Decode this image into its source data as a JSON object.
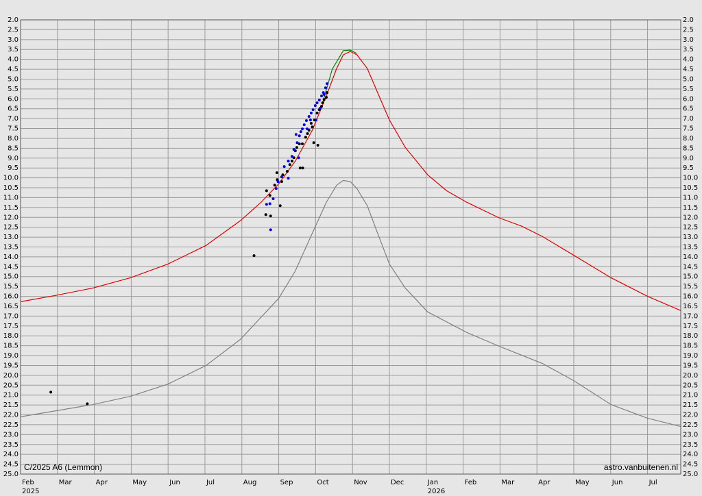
{
  "chart_data": {
    "type": "line",
    "title": "C/2025 A6 (Lemmon)",
    "credit": "astro.vanbuitenen.nl",
    "xlim": [
      0,
      17.9
    ],
    "xticks": [
      {
        "value": 0,
        "label": "Feb"
      },
      {
        "value": 1,
        "label": "Mar"
      },
      {
        "value": 2,
        "label": "Apr"
      },
      {
        "value": 3,
        "label": "May"
      },
      {
        "value": 4,
        "label": "Jun"
      },
      {
        "value": 5,
        "label": "Jul"
      },
      {
        "value": 6,
        "label": "Aug"
      },
      {
        "value": 7,
        "label": "Sep"
      },
      {
        "value": 8,
        "label": "Oct"
      },
      {
        "value": 9,
        "label": "Nov"
      },
      {
        "value": 10,
        "label": "Dec"
      },
      {
        "value": 11,
        "label": "Jan"
      },
      {
        "value": 12,
        "label": "Feb"
      },
      {
        "value": 13,
        "label": "Mar"
      },
      {
        "value": 14,
        "label": "Apr"
      },
      {
        "value": 15,
        "label": "May"
      },
      {
        "value": 16,
        "label": "Jun"
      },
      {
        "value": 17,
        "label": "Jul"
      }
    ],
    "xyears": [
      {
        "value": 0,
        "label": "2025"
      },
      {
        "value": 11,
        "label": "2026"
      }
    ],
    "ylim": [
      2,
      25
    ],
    "y_inverted": true,
    "grid": true,
    "yticks": [
      {
        "value": 2,
        "label": "2.0"
      },
      {
        "value": 2.5,
        "label": "2.5"
      },
      {
        "value": 3,
        "label": "3.0"
      },
      {
        "value": 3.5,
        "label": "3.5"
      },
      {
        "value": 4,
        "label": "4.0"
      },
      {
        "value": 4.5,
        "label": "4.5"
      },
      {
        "value": 5,
        "label": "5.0"
      },
      {
        "value": 5.5,
        "label": "5.5"
      },
      {
        "value": 6,
        "label": "6.0"
      },
      {
        "value": 6.5,
        "label": "6.5"
      },
      {
        "value": 7,
        "label": "7.0"
      },
      {
        "value": 7.5,
        "label": "7.5"
      },
      {
        "value": 8,
        "label": "8.0"
      },
      {
        "value": 8.5,
        "label": "8.5"
      },
      {
        "value": 9,
        "label": "9.0"
      },
      {
        "value": 9.5,
        "label": "9.5"
      },
      {
        "value": 10,
        "label": "10.0"
      },
      {
        "value": 10.5,
        "label": "10.5"
      },
      {
        "value": 11,
        "label": "11.0"
      },
      {
        "value": 11.5,
        "label": "11.5"
      },
      {
        "value": 12,
        "label": "12.0"
      },
      {
        "value": 12.5,
        "label": "12.5"
      },
      {
        "value": 13,
        "label": "13.0"
      },
      {
        "value": 13.5,
        "label": "13.5"
      },
      {
        "value": 14,
        "label": "14.0"
      },
      {
        "value": 14.5,
        "label": "14.5"
      },
      {
        "value": 15,
        "label": "15.0"
      },
      {
        "value": 15.5,
        "label": "15.5"
      },
      {
        "value": 16,
        "label": "16.0"
      },
      {
        "value": 16.5,
        "label": "16.5"
      },
      {
        "value": 17,
        "label": "17.0"
      },
      {
        "value": 17.5,
        "label": "17.5"
      },
      {
        "value": 18,
        "label": "18.0"
      },
      {
        "value": 18.5,
        "label": "18.5"
      },
      {
        "value": 19,
        "label": "19.0"
      },
      {
        "value": 19.5,
        "label": "19.5"
      },
      {
        "value": 20,
        "label": "20.0"
      },
      {
        "value": 20.5,
        "label": "20.5"
      },
      {
        "value": 21,
        "label": "21.0"
      },
      {
        "value": 21.5,
        "label": "21.5"
      },
      {
        "value": 22,
        "label": "22.0"
      },
      {
        "value": 22.5,
        "label": "22.5"
      },
      {
        "value": 23,
        "label": "23.0"
      },
      {
        "value": 23.5,
        "label": "23.5"
      },
      {
        "value": 24,
        "label": "24.0"
      },
      {
        "value": 24.5,
        "label": "24.5"
      },
      {
        "value": 25,
        "label": "25.0"
      }
    ],
    "series": [
      {
        "style": "line",
        "color": "#808080",
        "x": [
          0,
          1.96,
          2.98,
          4.0,
          5.03,
          5.96,
          7.0,
          7.45,
          7.91,
          8.29,
          8.57,
          8.75,
          8.94,
          9.12,
          9.4,
          9.68,
          10.0,
          10.43,
          11.04,
          12.1,
          12.98,
          14.15,
          14.99,
          16.01,
          17.0,
          17.9
        ],
        "values": [
          22.1,
          21.48,
          21.06,
          20.44,
          19.5,
          18.18,
          16.1,
          14.71,
          12.8,
          11.24,
          10.37,
          10.13,
          10.19,
          10.54,
          11.41,
          12.8,
          14.36,
          15.58,
          16.79,
          17.83,
          18.53,
          19.4,
          20.26,
          21.48,
          22.17,
          22.59
        ]
      },
      {
        "style": "line",
        "color": "#e00000",
        "x": [
          0,
          0.93,
          1.96,
          2.98,
          4.0,
          5.03,
          5.96,
          6.52,
          7.0,
          7.45,
          7.91,
          8.29,
          8.57,
          8.75,
          8.94,
          9.12,
          9.4,
          9.68,
          10.0,
          10.43,
          11.04,
          11.55,
          12.1,
          12.98,
          13.59,
          14.15,
          14.99,
          16.01,
          17.0,
          17.9
        ],
        "values": [
          16.27,
          15.96,
          15.58,
          15.06,
          14.36,
          13.42,
          12.17,
          11.24,
          10.3,
          9.15,
          7.59,
          5.85,
          4.46,
          3.77,
          3.6,
          3.77,
          4.46,
          5.68,
          7.07,
          8.46,
          9.85,
          10.65,
          11.24,
          12.03,
          12.45,
          12.97,
          13.91,
          15.06,
          16.0,
          16.72
        ]
      },
      {
        "style": "line",
        "color": "#008000",
        "x": [
          8.19,
          8.45,
          8.75,
          8.94,
          9.12
        ],
        "values": [
          6.2,
          4.5,
          3.56,
          3.53,
          3.7
        ]
      },
      {
        "style": "dots",
        "color": "#000000",
        "x": [
          0.82,
          1.81,
          6.33,
          6.65,
          6.78,
          6.67,
          6.76,
          6.89,
          6.96,
          7.04,
          6.95,
          7.08,
          7.11,
          7.23,
          7.3,
          7.36,
          7.41,
          7.45,
          7.49,
          7.56,
          7.64,
          7.58,
          7.65,
          7.73,
          7.78,
          7.82,
          7.88,
          7.91,
          7.95,
          8.06,
          7.97,
          8.04,
          8.1,
          8.16,
          8.19,
          8.23,
          8.29,
          8.31
        ],
        "values": [
          20.85,
          21.44,
          13.94,
          11.86,
          11.93,
          10.65,
          10.89,
          10.37,
          10.09,
          11.41,
          9.74,
          10.19,
          9.85,
          9.67,
          9.33,
          9.15,
          8.98,
          8.63,
          8.46,
          8.28,
          8.28,
          9.5,
          9.5,
          7.94,
          7.76,
          7.59,
          7.24,
          7.42,
          8.22,
          8.35,
          7.07,
          6.72,
          6.55,
          6.38,
          6.2,
          6.03,
          5.92,
          5.68
        ]
      },
      {
        "style": "dots",
        "color": "#0000ff",
        "x": [
          6.78,
          6.67,
          6.76,
          6.85,
          6.93,
          6.98,
          7.08,
          7.15,
          7.26,
          7.36,
          7.41,
          7.5,
          7.56,
          7.6,
          7.64,
          7.69,
          7.75,
          7.82,
          7.88,
          7.93,
          7.99,
          8.04,
          8.1,
          8.16,
          8.21,
          8.27,
          8.31,
          7.47,
          7.77,
          7.86,
          7.54,
          7.26,
          8.01,
          8.12,
          8.23
        ],
        "values": [
          12.63,
          11.34,
          11.31,
          11.06,
          10.54,
          10.19,
          9.95,
          9.43,
          9.15,
          8.91,
          8.56,
          8.22,
          7.87,
          7.66,
          7.52,
          7.31,
          7.1,
          6.89,
          6.72,
          6.55,
          6.34,
          6.2,
          6.06,
          5.85,
          5.68,
          5.44,
          5.23,
          7.8,
          7.52,
          7.07,
          8.98,
          10.02,
          7.07,
          6.48,
          5.78
        ]
      }
    ]
  }
}
